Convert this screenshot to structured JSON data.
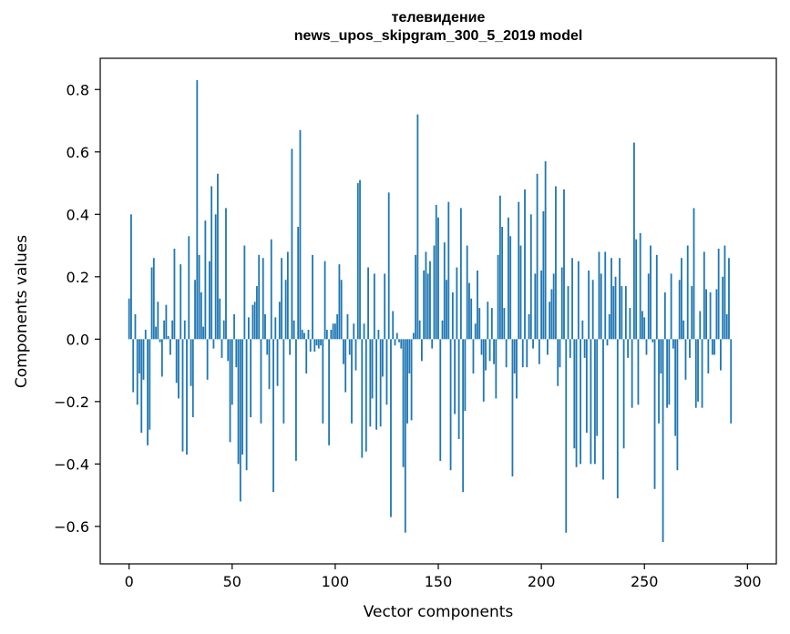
{
  "chart_data": {
    "type": "bar",
    "title": "телевидение",
    "subtitle": "news_upos_skipgram_300_5_2019 model",
    "xlabel": "Vector components",
    "ylabel": "Components values",
    "xlim": [
      -14,
      314
    ],
    "ylim": [
      -0.72,
      0.9
    ],
    "xticks": [
      0,
      50,
      100,
      150,
      200,
      250,
      300
    ],
    "xtick_labels": [
      "0",
      "50",
      "100",
      "150",
      "200",
      "250",
      "300"
    ],
    "yticks": [
      -0.6,
      -0.4,
      -0.2,
      0.0,
      0.2,
      0.4,
      0.6,
      0.8
    ],
    "ytick_labels": [
      "−0.6",
      "−0.4",
      "−0.2",
      "0.0",
      "0.2",
      "0.4",
      "0.6",
      "0.8"
    ],
    "grid": false,
    "bar_color": "#1f77b4",
    "values": [
      0.13,
      0.4,
      -0.17,
      0.08,
      -0.21,
      -0.11,
      -0.3,
      -0.13,
      0.03,
      -0.34,
      -0.29,
      0.23,
      0.26,
      0.04,
      0.12,
      -0.01,
      -0.12,
      0.06,
      0.11,
      0.01,
      -0.05,
      0.06,
      0.29,
      -0.14,
      -0.19,
      0.24,
      -0.36,
      0.06,
      -0.37,
      0.33,
      -0.15,
      -0.25,
      0.19,
      0.83,
      0.27,
      0.15,
      0.04,
      0.38,
      -0.13,
      0.25,
      0.49,
      -0.03,
      0.4,
      0.53,
      0.13,
      -0.06,
      0.06,
      0.42,
      -0.07,
      -0.33,
      -0.21,
      0.08,
      -0.09,
      -0.4,
      -0.52,
      -0.37,
      0.3,
      -0.42,
      0.07,
      -0.25,
      0.11,
      0.12,
      0.17,
      0.27,
      -0.27,
      0.26,
      0.08,
      -0.05,
      -0.16,
      0.32,
      -0.49,
      0.07,
      -0.15,
      0.12,
      0.26,
      -0.27,
      0.19,
      0.28,
      -0.05,
      0.61,
      0.06,
      -0.39,
      0.36,
      0.67,
      0.03,
      0.02,
      -0.11,
      0.03,
      -0.04,
      0.27,
      -0.04,
      -0.02,
      -0.03,
      -0.02,
      -0.27,
      0.25,
      0.03,
      -0.34,
      0.03,
      0.05,
      0.05,
      0.08,
      0.24,
      0.19,
      -0.08,
      -0.17,
      0.08,
      -0.05,
      -0.27,
      0.05,
      -0.1,
      0.5,
      0.51,
      -0.38,
      0.05,
      -0.36,
      0.23,
      -0.28,
      -0.19,
      0.21,
      -0.29,
      0.03,
      -0.28,
      -0.12,
      0.21,
      -0.21,
      0.47,
      -0.57,
      0.09,
      -0.02,
      0.02,
      -0.01,
      -0.03,
      -0.41,
      -0.62,
      -0.27,
      -0.11,
      -0.26,
      0.02,
      0.27,
      0.72,
      0.06,
      -0.07,
      0.22,
      0.28,
      0.21,
      0.25,
      -0.03,
      0.3,
      0.43,
      0.39,
      -0.39,
      0.06,
      0.31,
      0.19,
      0.44,
      -0.42,
      0.15,
      -0.24,
      0.23,
      -0.32,
      0.42,
      -0.49,
      -0.23,
      0.3,
      0.18,
      0.13,
      -0.11,
      0.05,
      0.22,
      0.1,
      -0.05,
      -0.2,
      -0.1,
      0.12,
      -0.07,
      0.1,
      -0.08,
      -0.19,
      0.27,
      0.46,
      0.36,
      0.1,
      -0.09,
      0.39,
      0.33,
      -0.44,
      -0.11,
      -0.19,
      0.44,
      0.3,
      -0.09,
      0.48,
      -0.09,
      0.08,
      0.4,
      -0.03,
      0.21,
      0.53,
      -0.08,
      0.22,
      0.41,
      0.57,
      -0.05,
      0.12,
      0.16,
      0.21,
      0.49,
      -0.15,
      -0.09,
      0.23,
      0.48,
      -0.62,
      0.17,
      -0.06,
      0.26,
      -0.35,
      -0.41,
      0.25,
      -0.4,
      0.06,
      -0.06,
      -0.3,
      0.22,
      -0.4,
      0.19,
      -0.4,
      -0.31,
      0.28,
      0.21,
      -0.45,
      0.28,
      -0.02,
      0.08,
      0.26,
      0.17,
      0.2,
      -0.51,
      0.26,
      0.17,
      -0.35,
      0.17,
      -0.06,
      0.1,
      -0.22,
      0.63,
      0.32,
      -0.21,
      0.34,
      0.09,
      0.07,
      -0.05,
      0.21,
      0.3,
      -0.01,
      -0.48,
      0.27,
      -0.27,
      -0.11,
      -0.65,
      0.15,
      -0.22,
      -0.21,
      0.21,
      -0.03,
      -0.31,
      -0.42,
      0.19,
      0.26,
      0.06,
      -0.13,
      0.3,
      -0.06,
      0.17,
      0.42,
      -0.22,
      -0.2,
      0.09,
      -0.22,
      0.28,
      0.16,
      -0.11,
      0.15,
      -0.05,
      -0.05,
      0.16,
      0.29,
      -0.1,
      0.2,
      0.3,
      0.08,
      0.26,
      -0.27
    ]
  }
}
